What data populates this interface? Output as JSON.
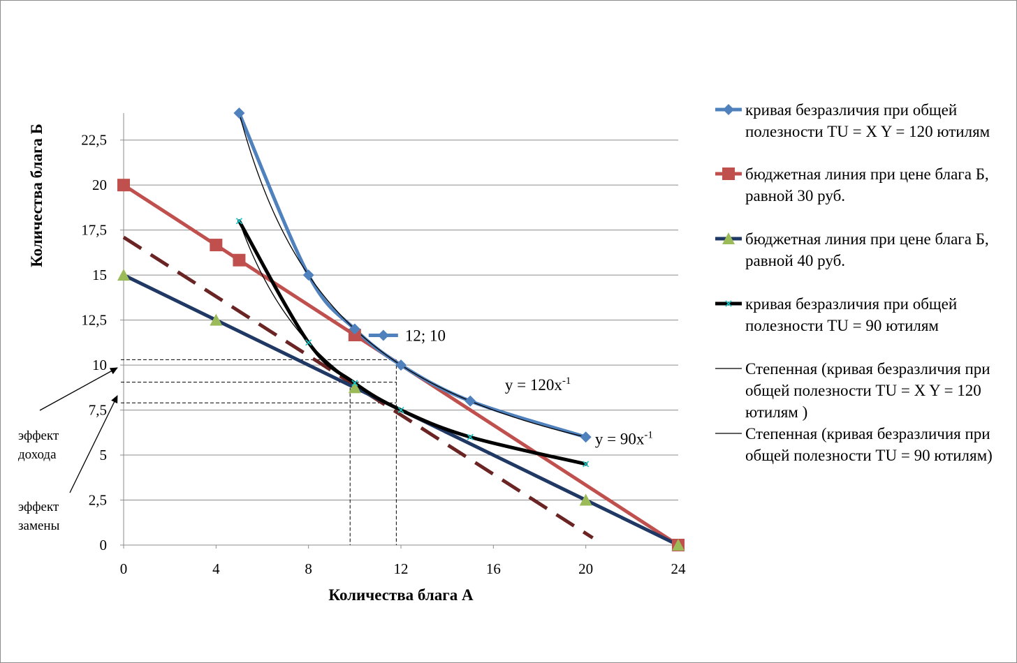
{
  "chart_data": {
    "type": "line",
    "xlabel": "Количества блага А",
    "ylabel": "Количества блага Б",
    "xlim": [
      0,
      24
    ],
    "ylim": [
      0,
      24
    ],
    "x_ticks": [
      0,
      4,
      8,
      12,
      16,
      20,
      24
    ],
    "y_ticks": [
      {
        "v": 0,
        "label": "0"
      },
      {
        "v": 2.5,
        "label": "2,5"
      },
      {
        "v": 5,
        "label": "5"
      },
      {
        "v": 7.5,
        "label": "7,5"
      },
      {
        "v": 10,
        "label": "10"
      },
      {
        "v": 12.5,
        "label": "12,5"
      },
      {
        "v": 15,
        "label": "15"
      },
      {
        "v": 17.5,
        "label": "17,5"
      },
      {
        "v": 20,
        "label": "20"
      },
      {
        "v": 22.5,
        "label": "22,5"
      }
    ],
    "grid": "horizontal",
    "legend_position": "right",
    "series": [
      {
        "key": "ic120",
        "name": "кривая безразличия при общей полезности TU = X Y = 120 ютилям",
        "color": "#4f81bd",
        "marker": "diamond",
        "smooth": true,
        "points": [
          [
            5,
            24
          ],
          [
            8,
            15
          ],
          [
            10,
            12
          ],
          [
            12,
            10
          ],
          [
            15,
            8
          ],
          [
            20,
            6
          ]
        ]
      },
      {
        "key": "budget30",
        "name": "бюджетная линия при цене блага Б, равной 30 руб.",
        "color": "#c0504d",
        "marker": "square",
        "smooth": false,
        "points": [
          [
            0,
            20
          ],
          [
            4,
            16.67
          ],
          [
            5,
            15.83
          ],
          [
            10,
            11.67
          ],
          [
            24,
            0
          ]
        ]
      },
      {
        "key": "budget40",
        "name": "бюджетная линия при цене блага Б, равной 40 руб.",
        "color": "#1f3864",
        "marker": "triangle",
        "marker_color": "#9bbb59",
        "smooth": false,
        "points": [
          [
            0,
            15
          ],
          [
            4,
            12.5
          ],
          [
            10,
            8.75
          ],
          [
            20,
            2.5
          ],
          [
            24,
            0
          ]
        ]
      },
      {
        "key": "ic90",
        "name": "кривая безразличия при общей полезности TU = 90 ютилям",
        "color": "#000000",
        "marker": "x",
        "marker_color": "#17c5c5",
        "smooth": true,
        "points": [
          [
            5,
            18
          ],
          [
            8,
            11.25
          ],
          [
            10,
            9
          ],
          [
            12,
            7.5
          ],
          [
            15,
            6
          ],
          [
            20,
            4.5
          ]
        ]
      },
      {
        "key": "pow120",
        "name": "Степенная (кривая безразличия при общей полезности TU = X Y = 120 ютилям )",
        "color": "#000000",
        "marker": "none",
        "fn_coef": 120,
        "x_range": [
          5,
          20
        ]
      },
      {
        "key": "pow90",
        "name": "Степенная (кривая безразличия при общей полезности TU = 90 ютилям)",
        "color": "#000000",
        "marker": "none",
        "fn_coef": 90,
        "x_range": [
          5,
          20
        ]
      }
    ],
    "compensating_line": {
      "color": "#6b2424",
      "points": [
        [
          0,
          17.1
        ],
        [
          20.3,
          0.4
        ]
      ]
    },
    "guide_lines": {
      "horizontal": [
        10.3,
        9.05,
        7.9
      ],
      "vertical": [
        {
          "x": 9.8,
          "top": 9.05
        },
        {
          "x": 11.8,
          "top": 10.3
        }
      ]
    },
    "point_label": {
      "text": "12; 10",
      "at": [
        10,
        12
      ]
    },
    "equation_labels": [
      {
        "base": "y = 120x",
        "exp": "-1",
        "at": [
          16.5,
          8.6
        ]
      },
      {
        "base": "y = 90x",
        "exp": "-1",
        "at": [
          20.4,
          5.6
        ]
      }
    ],
    "annotations": {
      "income_effect": [
        "эффект",
        "дохода"
      ],
      "substitution_effect": [
        "эффект",
        "замены"
      ]
    }
  }
}
